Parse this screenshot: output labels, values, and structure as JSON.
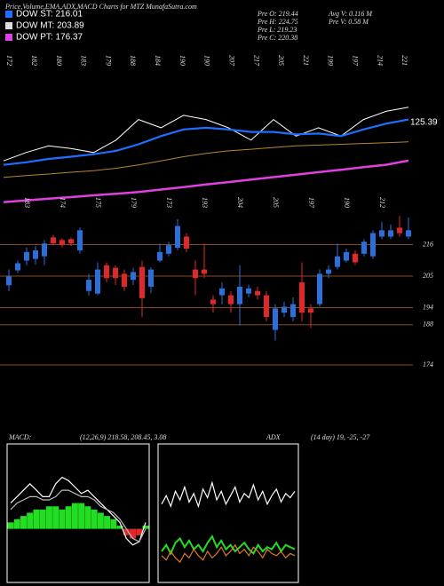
{
  "header": {
    "title": "Price,Volume,EMA,ADX,MACD Charts for MTZ MunafaSutra.com",
    "legend": [
      {
        "label": "DOW ST: 216.01",
        "color": "#1e6fff"
      },
      {
        "label": "DOW MT: 203.89",
        "color": "#dddddd"
      },
      {
        "label": "DOW PT: 176.37",
        "color": "#e040e0"
      }
    ],
    "info_left": [
      "Pre  O: 219.44",
      "Pre  H: 224.75",
      "Pre  L: 219.23",
      "Pre  C: 220.38"
    ],
    "info_right": [
      "Avg V: 0.116  M",
      "Pre  V: 0.58  M"
    ]
  },
  "chart_data": [
    {
      "type": "line",
      "ylim": [
        140,
        262
      ],
      "price_labels": [
        172,
        182,
        180,
        183,
        179,
        188,
        184,
        190,
        190,
        207,
        217,
        205,
        221,
        199,
        197,
        214,
        221
      ],
      "low_labels": [
        183,
        174,
        175,
        179,
        173,
        193,
        204,
        205,
        197,
        190,
        212
      ],
      "end_label": "125.39",
      "series": [
        {
          "name": "Close",
          "color": "#ffffff",
          "values": [
            182.1,
            188.3,
            193.2,
            191.3,
            188.3,
            197.5,
            212.8,
            206.7,
            215.9,
            212.8,
            206.7,
            197.5,
            212.8,
            200.5,
            206.7,
            200.5,
            212.8,
            218.9,
            222
          ]
        },
        {
          "name": "EMA short",
          "color": "#1e6fff",
          "values": [
            179.1,
            181,
            183.5,
            185.2,
            187,
            189.5,
            194.4,
            200.5,
            205.4,
            206.7,
            205.4,
            203.6,
            203.6,
            201.8,
            202.4,
            200.5,
            205.4,
            209.7,
            212.8
          ]
        },
        {
          "name": "EMA mid",
          "color": "#b8862e",
          "values": [
            169.9,
            171.1,
            172.3,
            173.6,
            174.8,
            176.6,
            179.1,
            182.1,
            185.2,
            187.7,
            189.5,
            190.7,
            192,
            193.2,
            193.8,
            194.4,
            195,
            195.6,
            196.2
          ]
        },
        {
          "name": "EMA long",
          "color": "#e040e0",
          "values": [
            151.5,
            152.7,
            154,
            155.2,
            156.5,
            157.7,
            159,
            160.8,
            162.6,
            164.5,
            166.3,
            168.2,
            170,
            171.8,
            173.7,
            175.5,
            177.4,
            179.2,
            182.3
          ]
        }
      ]
    },
    {
      "type": "candlestick",
      "up_color": "#2a6fdb",
      "down_color": "#e0282b",
      "grid_color": "#8b4a1c",
      "ylim": [
        165,
        227
      ],
      "yticks": [
        216,
        205,
        194,
        188,
        174
      ],
      "open": [
        201.8,
        207,
        210.4,
        211,
        211.9,
        218.5,
        217.6,
        217.9,
        214,
        199.8,
        198.9,
        208.8,
        207.9,
        205.8,
        203.7,
        208.2,
        201.3,
        210.4,
        212.8,
        214.9,
        218.8,
        207.3,
        207.3,
        196.8,
        198.3,
        198.3,
        195.2,
        198.9,
        199.8,
        198.3,
        186.2,
        192.2,
        190.7,
        202.8,
        193.7,
        195.2,
        205.8,
        208.2,
        210.4,
        212.8,
        212.8,
        211.9,
        218.8,
        218.8,
        221.9,
        218.8
      ],
      "high": [
        207.3,
        210.4,
        215,
        215.5,
        217.6,
        219.4,
        218.2,
        218.5,
        222,
        205.8,
        209.8,
        209.8,
        208.8,
        207.3,
        207.9,
        210.4,
        208,
        216.4,
        217,
        224.9,
        220,
        210.4,
        216.4,
        198.3,
        202.8,
        199.8,
        208.8,
        202,
        201.3,
        199.8,
        195.2,
        196,
        197.6,
        209.8,
        195.2,
        207.3,
        208.8,
        216.4,
        214.6,
        214,
        217.9,
        221,
        224,
        223,
        226,
        225.5
      ],
      "low": [
        199.7,
        206,
        208.8,
        209,
        208.8,
        215.8,
        215,
        215.5,
        212.8,
        198.3,
        198.3,
        202.8,
        201.9,
        199.8,
        201.9,
        190.7,
        199,
        209.8,
        211.9,
        214,
        213.4,
        198.3,
        204.3,
        192.2,
        195.2,
        192.2,
        187.7,
        197.6,
        196.8,
        189.2,
        182.5,
        190.7,
        189.2,
        189.2,
        186.8,
        194.3,
        204.3,
        207.3,
        209.8,
        208.8,
        211.9,
        211,
        217.9,
        218,
        218.8,
        217.9
      ],
      "close": [
        204.9,
        209.5,
        213.4,
        214,
        216.4,
        216.4,
        215.8,
        216.4,
        221,
        203.7,
        207.3,
        204.3,
        204.3,
        201.3,
        206.4,
        197.3,
        207.3,
        213.4,
        215.8,
        222.5,
        214.6,
        204.3,
        205.8,
        195.2,
        200.7,
        195.2,
        201.3,
        200.7,
        198.3,
        190.7,
        193.7,
        194.3,
        195.2,
        192.2,
        192.2,
        205.8,
        207.3,
        211.9,
        213.4,
        209.8,
        217,
        220,
        221,
        221,
        220,
        221
      ]
    },
    {
      "type": "macd",
      "title": "MACD:",
      "params": "(12,26,9) 218.58, 208.45, 3.08",
      "ylim": [
        -15,
        25
      ],
      "bar_color": "#22dd22",
      "neg_color": "#e0282b",
      "histogram": [
        2,
        3,
        4,
        5,
        6,
        6,
        7,
        7,
        6,
        7,
        8,
        8,
        7,
        6,
        5,
        4,
        3,
        1,
        -2,
        -3,
        -2,
        1
      ],
      "series": [
        {
          "name": "MACD",
          "color": "#ffffff",
          "values": [
            8,
            10,
            12,
            14,
            12,
            10,
            10,
            14,
            16,
            15,
            13,
            11,
            12,
            10,
            8,
            6,
            4,
            2,
            -3,
            -5,
            -4,
            2
          ]
        },
        {
          "name": "Signal",
          "color": "#bbbbbb",
          "values": [
            6,
            8,
            9,
            10,
            10,
            9,
            9,
            10,
            12,
            12,
            11,
            10,
            10,
            9,
            7,
            6,
            5,
            3,
            0,
            -3,
            -4,
            0
          ]
        }
      ]
    },
    {
      "type": "adx",
      "title": "ADX",
      "params": "(14 day) 19, -25, -27",
      "ylim": [
        0,
        60
      ],
      "series": [
        {
          "name": "ADX",
          "color": "#ffffff",
          "values": [
            34,
            38,
            33,
            40,
            36,
            42,
            35,
            39,
            33,
            41,
            37,
            44,
            36,
            40,
            34,
            38,
            42,
            35,
            39,
            37,
            43,
            36,
            40,
            34,
            38,
            41,
            35,
            39,
            37,
            40
          ]
        },
        {
          "name": "+DI",
          "color": "#22dd22",
          "values": [
            12,
            15,
            11,
            16,
            18,
            14,
            17,
            13,
            15,
            12,
            16,
            19,
            14,
            17,
            13,
            15,
            12,
            14,
            16,
            13,
            11,
            15,
            12,
            14,
            13,
            16,
            12,
            15,
            14,
            13
          ]
        },
        {
          "name": "-DI",
          "color": "#e07a1c",
          "values": [
            10,
            8,
            12,
            9,
            7,
            11,
            9,
            13,
            10,
            8,
            12,
            9,
            11,
            14,
            10,
            12,
            15,
            11,
            13,
            10,
            14,
            12,
            9,
            13,
            11,
            10,
            12,
            9,
            11,
            10
          ]
        }
      ]
    }
  ]
}
